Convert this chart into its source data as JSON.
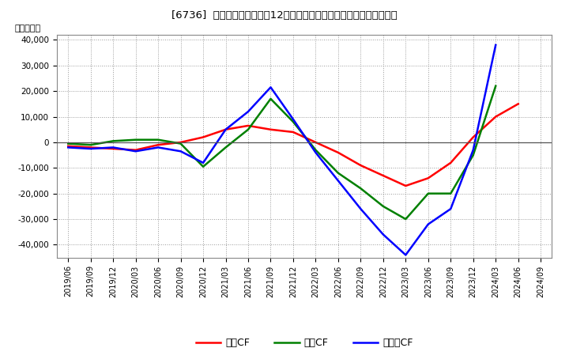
{
  "title": "[6736]  キャッシュフローの12か月移動合計の対前年同期増減額の推移",
  "ylabel": "（百万円）",
  "background_color": "#ffffff",
  "plot_bg_color": "#ffffff",
  "grid_color": "#999999",
  "ylim": [
    -45000,
    42000
  ],
  "yticks": [
    -40000,
    -30000,
    -20000,
    -10000,
    0,
    10000,
    20000,
    30000,
    40000
  ],
  "dates": [
    "2019/06",
    "2019/09",
    "2019/12",
    "2020/03",
    "2020/06",
    "2020/09",
    "2020/12",
    "2021/03",
    "2021/06",
    "2021/09",
    "2021/12",
    "2022/03",
    "2022/06",
    "2022/09",
    "2022/12",
    "2023/03",
    "2023/06",
    "2023/09",
    "2023/12",
    "2024/03",
    "2024/06",
    "2024/09"
  ],
  "operating_cf": [
    -1500,
    -2000,
    -2500,
    -3000,
    -1000,
    0,
    2000,
    5000,
    6500,
    5000,
    4000,
    0,
    -4000,
    -9000,
    -13000,
    -17000,
    -14000,
    -8000,
    2000,
    10000,
    15000,
    null
  ],
  "investing_cf": [
    -500,
    -1000,
    500,
    1000,
    1000,
    -500,
    -9500,
    -2000,
    5000,
    17000,
    8000,
    -3000,
    -12000,
    -18000,
    -25000,
    -30000,
    -20000,
    -20000,
    -5000,
    22000,
    null,
    null
  ],
  "free_cf": [
    -2000,
    -2500,
    -2000,
    -3500,
    -2000,
    -3500,
    -8000,
    5000,
    12000,
    21500,
    9000,
    -4000,
    -15000,
    -26000,
    -36000,
    -44000,
    -32000,
    -26000,
    -3000,
    38000,
    null,
    null
  ],
  "operating_color": "#ff0000",
  "investing_color": "#008000",
  "free_color": "#0000ff",
  "line_width": 1.8,
  "legend_labels": [
    "営業CF",
    "投資CF",
    "フリーCF"
  ]
}
